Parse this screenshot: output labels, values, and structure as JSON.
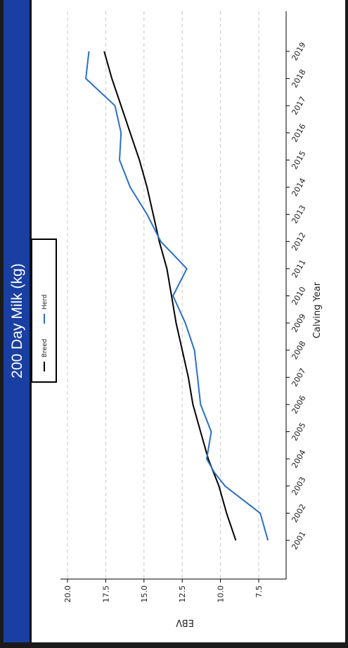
{
  "chart_data": {
    "type": "line",
    "title": "200 Day Milk (kg)",
    "xlabel": "Calving Year",
    "ylabel": "EBV",
    "x": [
      "2001",
      "2002",
      "2003",
      "2004",
      "2005",
      "2006",
      "2007",
      "2008",
      "2009",
      "2010",
      "2011",
      "2012",
      "2013",
      "2014",
      "2015",
      "2016",
      "2017",
      "2018",
      "2019"
    ],
    "ylim": [
      6.0,
      20.5
    ],
    "yticks": [
      "20.0",
      "17.5",
      "15.0",
      "12.5",
      "10.0",
      "7.5"
    ],
    "grid": true,
    "legend_position": "top",
    "series": [
      {
        "name": "Breed",
        "color": "#000000",
        "points": [
          [
            "2001",
            9.0
          ],
          [
            "2002",
            9.6
          ],
          [
            "2003",
            10.1
          ],
          [
            "2004",
            10.8
          ],
          [
            "2005",
            11.3
          ],
          [
            "2006",
            11.8
          ],
          [
            "2007",
            12.1
          ],
          [
            "2008",
            12.5
          ],
          [
            "2009",
            12.9
          ],
          [
            "2010",
            13.2
          ],
          [
            "2011",
            13.5
          ],
          [
            "2012",
            14.0
          ],
          [
            "2013",
            14.4
          ],
          [
            "2014",
            14.8
          ],
          [
            "2015",
            15.3
          ],
          [
            "2016",
            15.9
          ],
          [
            "2017",
            16.5
          ],
          [
            "2018",
            17.1
          ],
          [
            "2019",
            17.6
          ]
        ]
      },
      {
        "name": "Herd",
        "color": "#2a6fc4",
        "points": [
          [
            "2001",
            6.9
          ],
          [
            "2002",
            7.4
          ],
          [
            "2003",
            9.7
          ],
          [
            "2003.5",
            10.4
          ],
          [
            "2004",
            10.9
          ],
          [
            "2005",
            10.6
          ],
          [
            "2006",
            11.3
          ],
          [
            "2007",
            11.5
          ],
          [
            "2008",
            11.7
          ],
          [
            "2009",
            12.3
          ],
          [
            "2010",
            13.1
          ],
          [
            "2011",
            12.2
          ],
          [
            "2012",
            13.9
          ],
          [
            "2013",
            14.8
          ],
          [
            "2014",
            15.9
          ],
          [
            "2015",
            16.6
          ],
          [
            "2016",
            16.5
          ],
          [
            "2017",
            16.9
          ],
          [
            "2018",
            18.8
          ],
          [
            "2019",
            18.6
          ]
        ]
      }
    ]
  }
}
